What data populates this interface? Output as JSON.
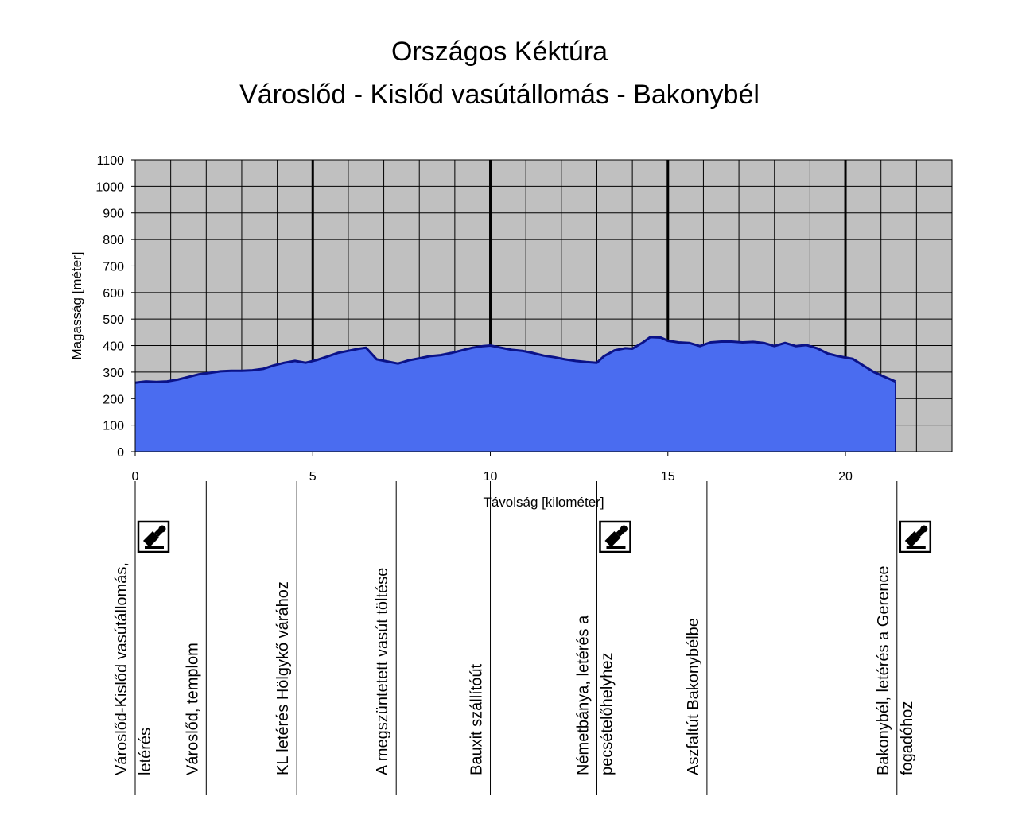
{
  "title_line1": "Országos Kéktúra",
  "title_line2": "Városlőd - Kislőd vasútállomás - Bakonybél",
  "chart_data": {
    "type": "area",
    "xlabel": "Távolság [kilométer]",
    "ylabel": "Magasság [méter]",
    "xlim": [
      0,
      23
    ],
    "ylim": [
      0,
      1100
    ],
    "yticks": [
      0,
      100,
      200,
      300,
      400,
      500,
      600,
      700,
      800,
      900,
      1000,
      1100
    ],
    "xticks": [
      0,
      5,
      10,
      15,
      20
    ],
    "xtick_labels": [
      "0",
      "5",
      "10",
      "15",
      "20"
    ],
    "grid": true,
    "plot_background": "#c0c0c0",
    "fill_color": "#4a6cf0",
    "line_color": "#0b1288",
    "x": [
      0,
      0.3,
      0.6,
      0.9,
      1.2,
      1.5,
      1.8,
      2.1,
      2.4,
      2.7,
      3.0,
      3.3,
      3.6,
      3.9,
      4.2,
      4.5,
      4.8,
      5.1,
      5.4,
      5.7,
      6.0,
      6.3,
      6.5,
      6.8,
      7.1,
      7.4,
      7.7,
      8.0,
      8.3,
      8.6,
      8.9,
      9.2,
      9.5,
      9.8,
      10.0,
      10.3,
      10.6,
      10.9,
      11.2,
      11.5,
      11.8,
      12.1,
      12.4,
      12.7,
      13.0,
      13.2,
      13.5,
      13.8,
      14.0,
      14.3,
      14.5,
      14.8,
      15.0,
      15.3,
      15.6,
      15.9,
      16.2,
      16.5,
      16.8,
      17.1,
      17.4,
      17.7,
      18.0,
      18.3,
      18.6,
      18.9,
      19.2,
      19.5,
      19.8,
      20.0,
      20.2,
      20.5,
      20.8,
      21.1,
      21.4
    ],
    "y": [
      260,
      265,
      263,
      265,
      272,
      282,
      292,
      297,
      303,
      305,
      305,
      307,
      312,
      325,
      335,
      342,
      335,
      345,
      358,
      372,
      380,
      388,
      392,
      348,
      340,
      332,
      344,
      352,
      360,
      364,
      372,
      382,
      392,
      398,
      400,
      392,
      384,
      380,
      372,
      362,
      356,
      348,
      342,
      338,
      335,
      360,
      382,
      390,
      388,
      412,
      432,
      430,
      418,
      412,
      410,
      398,
      412,
      415,
      415,
      412,
      414,
      410,
      398,
      410,
      398,
      402,
      390,
      370,
      360,
      355,
      350,
      325,
      300,
      282,
      265
    ]
  },
  "waypoints": [
    {
      "x": 0,
      "lines": [
        "Városlőd-Kislőd vasútállomás,",
        "letérés"
      ],
      "stamp": true
    },
    {
      "x": 2,
      "lines": [
        "Városlőd, templom"
      ],
      "stamp": false
    },
    {
      "x": 4.55,
      "lines": [
        "KL letérés Hölgykő várához"
      ],
      "stamp": false
    },
    {
      "x": 7.35,
      "lines": [
        "A megszüntetett vasút töltése"
      ],
      "stamp": false
    },
    {
      "x": 10,
      "lines": [
        "Bauxit szállítóút"
      ],
      "stamp": false
    },
    {
      "x": 13,
      "lines": [
        "Németbánya, letérés a",
        "pecsételőhelyhez"
      ],
      "stamp": true
    },
    {
      "x": 16.1,
      "lines": [
        "Aszfaltút Bakonybélbe"
      ],
      "stamp": false
    },
    {
      "x": 21.45,
      "lines": [
        "Bakonybél, letérés a Gerence",
        "fogadóhoz"
      ],
      "stamp": true
    }
  ]
}
